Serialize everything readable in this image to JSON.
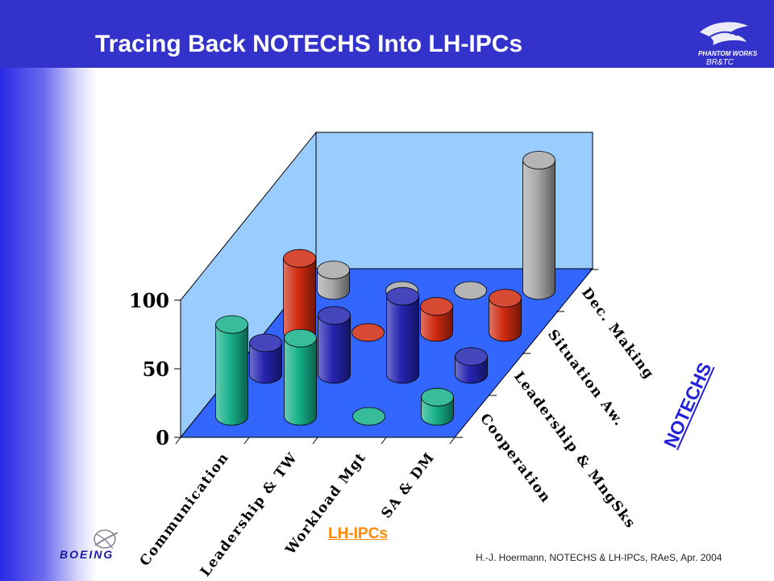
{
  "slide": {
    "title": "Tracing Back NOTECHS Into LH-IPCs",
    "logo_text": "BR&TC",
    "logo_wordmark": "PHANTOM WORKS",
    "footer": "H.-J. Hoermann, NOTECHS & LH-IPCs, RAeS, Apr. 2004",
    "brand": "BOEING",
    "colors": {
      "title_bar": "#3333cc",
      "text_title": "#ffffff"
    }
  },
  "chart_data": {
    "type": "bar",
    "style": "3d-cylinder",
    "categories": [
      "Communication",
      "Leadership & TW",
      "Workload Mgt",
      "SA & DM"
    ],
    "depth_categories": [
      "Cooperation",
      "Leadership & MngSks",
      "Situation Aw.",
      "Dec. Making"
    ],
    "series": [
      {
        "name": "Cooperation",
        "color": "#16b08a",
        "values": [
          67,
          57,
          0,
          14
        ]
      },
      {
        "name": "Leadership & MngSks",
        "color": "#2424b0",
        "values": [
          23,
          43,
          57,
          13
        ]
      },
      {
        "name": "Situation Aw.",
        "color": "#d02a10",
        "values": [
          54,
          0,
          19,
          25
        ]
      },
      {
        "name": "Dec. Making",
        "color": "#a8a8a8",
        "values": [
          15,
          0,
          0,
          95
        ]
      }
    ],
    "yticks": [
      0,
      50,
      100
    ],
    "ylim": [
      0,
      200
    ],
    "xlabel": "LH-IPCs",
    "ylabel": "",
    "zlabel": "NOTECHS",
    "wall_color": "#99ccff",
    "floor_color": "#3366ff",
    "grid": false
  }
}
